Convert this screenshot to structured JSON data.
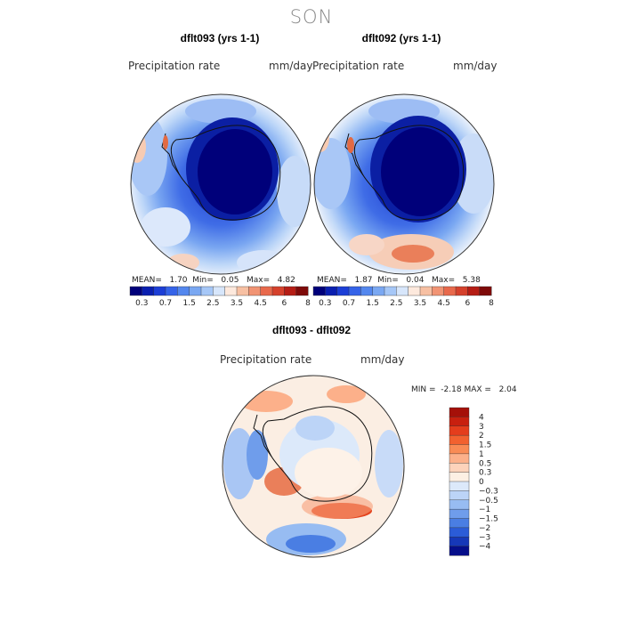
{
  "figure": {
    "title": "SON"
  },
  "panels": [
    {
      "title": "dflt093 (yrs 1-1)",
      "variable": "Precipitation rate",
      "units": "mm/day",
      "stats": {
        "mean_label": "MEAN=",
        "mean": "1.70",
        "min_label": "Min=",
        "min": "0.05",
        "max_label": "Max=",
        "max": "4.82"
      }
    },
    {
      "title": "dflt092 (yrs 1-1)",
      "variable": "Precipitation rate",
      "units": "mm/day",
      "stats": {
        "mean_label": "MEAN=",
        "mean": "1.87",
        "min_label": "Min=",
        "min": "0.04",
        "max_label": "Max=",
        "max": "5.38"
      }
    }
  ],
  "shared_colorbar": {
    "colors": [
      "#00007a",
      "#0a1fb0",
      "#1c3ed6",
      "#3563e8",
      "#5487ee",
      "#7aa8f2",
      "#a6c7f7",
      "#d7e6fb",
      "#fde9dd",
      "#f7c0a3",
      "#f19474",
      "#e8694c",
      "#d5412c",
      "#b51d15",
      "#7e0a09"
    ],
    "tick_labels": [
      "0.3",
      "0.7",
      "1.5",
      "2.5",
      "3.5",
      "4.5",
      "6",
      "8"
    ]
  },
  "diff_panel": {
    "title": "dflt093 - dflt092",
    "variable": "Precipitation rate",
    "units": "mm/day",
    "stats": {
      "min_label": "MIN =",
      "min": "-2.18",
      "max_label": "MAX =",
      "max": "2.04"
    },
    "colorbar": {
      "colors_top_to_bottom": [
        "#a51009",
        "#c8200f",
        "#e43d1c",
        "#f2612f",
        "#f98b55",
        "#fcb08a",
        "#fdd3bb",
        "#fdf0e4",
        "#dce9fa",
        "#bcd4f7",
        "#97bcf2",
        "#6f9deb",
        "#4a7ee3",
        "#2b5cd7",
        "#1638b8",
        "#050e8a"
      ],
      "labels_top_to_bottom": [
        "4",
        "3",
        "2",
        "1.5",
        "1",
        "0.5",
        "0.3",
        "0",
        "−0.3",
        "−0.5",
        "−1",
        "−1.5",
        "−2",
        "−3",
        "−4"
      ]
    }
  }
}
